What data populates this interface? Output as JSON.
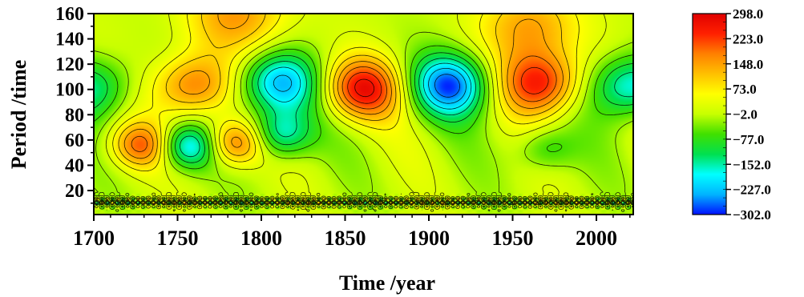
{
  "chart_data": {
    "type": "heatmap",
    "title": "",
    "xlabel": "Time /year",
    "ylabel": "Period /time",
    "xlim": [
      1700,
      2022
    ],
    "ylim": [
      1,
      160
    ],
    "x_ticks": [
      1700,
      1750,
      1800,
      1850,
      1900,
      1950,
      2000
    ],
    "y_ticks": [
      20,
      40,
      60,
      80,
      100,
      120,
      140,
      160
    ],
    "colorbar": {
      "ticks": [
        "298.0",
        "223.0",
        "148.0",
        "73.0",
        "-2.0",
        "-77.0",
        "-152.0",
        "-227.0",
        "-302.0"
      ],
      "range": [
        -302,
        298
      ],
      "colormap": [
        "#0010ff",
        "#00b4ff",
        "#00ffff",
        "#00e050",
        "#40e000",
        "#c8ff00",
        "#ffff00",
        "#ffc000",
        "#ff8000",
        "#ff2000",
        "#e00000"
      ]
    },
    "features": [
      {
        "year": 1700,
        "period": 102,
        "value": -140
      },
      {
        "year": 1728,
        "period": 56,
        "value": 180
      },
      {
        "year": 1756,
        "period": 55,
        "value": -200
      },
      {
        "year": 1759,
        "period": 103,
        "value": 190
      },
      {
        "year": 1784,
        "period": 58,
        "value": 200
      },
      {
        "year": 1810,
        "period": 105,
        "value": -240
      },
      {
        "year": 1811,
        "period": 65,
        "value": -180
      },
      {
        "year": 1860,
        "period": 101,
        "value": 260
      },
      {
        "year": 1912,
        "period": 104,
        "value": -270
      },
      {
        "year": 1966,
        "period": 105,
        "value": 240
      },
      {
        "year": 1960,
        "period": 150,
        "value": 150
      },
      {
        "year": 1785,
        "period": 160,
        "value": 150
      },
      {
        "year": 2020,
        "period": 103,
        "value": -200
      },
      {
        "year": 1969,
        "period": 53,
        "value": -90
      }
    ],
    "grid": false,
    "legend": "colorbar right"
  }
}
